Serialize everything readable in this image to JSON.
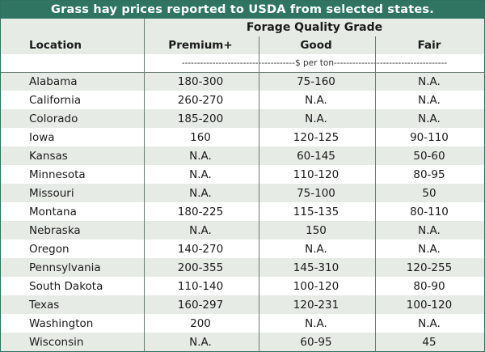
{
  "title": "Grass hay prices reported to USDA from selected states.",
  "header": {
    "grade_group": "Forage Quality Grade",
    "columns": [
      "Location",
      "Premium+",
      "Good",
      "Fair"
    ],
    "units": "-------------------------------------$ per ton-------------------------------------"
  },
  "rows": [
    {
      "location": "Alabama",
      "premium": "180-300",
      "good": "75-160",
      "fair": "N.A."
    },
    {
      "location": "California",
      "premium": "260-270",
      "good": "N.A.",
      "fair": "N.A."
    },
    {
      "location": "Colorado",
      "premium": "185-200",
      "good": "N.A.",
      "fair": "N.A."
    },
    {
      "location": "Iowa",
      "premium": "160",
      "good": "120-125",
      "fair": "90-110"
    },
    {
      "location": "Kansas",
      "premium": "N.A.",
      "good": "60-145",
      "fair": "50-60"
    },
    {
      "location": "Minnesota",
      "premium": "N.A.",
      "good": "110-120",
      "fair": "80-95"
    },
    {
      "location": "Missouri",
      "premium": "N.A.",
      "good": "75-100",
      "fair": "50"
    },
    {
      "location": "Montana",
      "premium": "180-225",
      "good": "115-135",
      "fair": "80-110"
    },
    {
      "location": "Nebraska",
      "premium": "N.A.",
      "good": "150",
      "fair": "N.A."
    },
    {
      "location": "Oregon",
      "premium": "140-270",
      "good": "N.A.",
      "fair": "N.A."
    },
    {
      "location": "Pennsylvania",
      "premium": "200-355",
      "good": "145-310",
      "fair": "120-255"
    },
    {
      "location": "South Dakota",
      "premium": "110-140",
      "good": "100-120",
      "fair": "80-90"
    },
    {
      "location": "Texas",
      "premium": "160-297",
      "good": "120-231",
      "fair": "100-120"
    },
    {
      "location": "Washington",
      "premium": "200",
      "good": "N.A.",
      "fair": "N.A."
    },
    {
      "location": "Wisconsin",
      "premium": "N.A.",
      "good": "60-95",
      "fair": "45"
    }
  ]
}
